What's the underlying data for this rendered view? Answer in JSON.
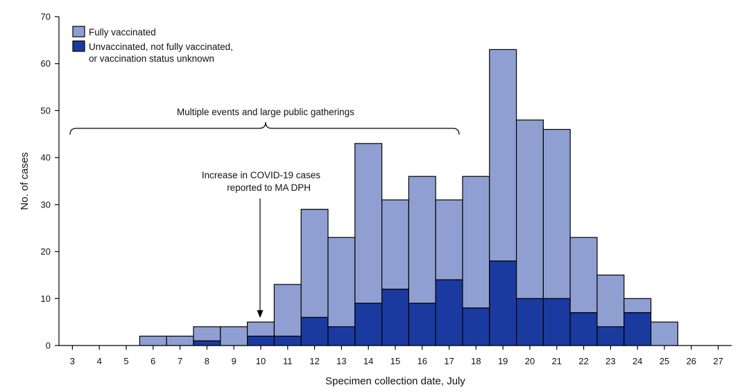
{
  "chart_data": {
    "type": "bar",
    "stacked": true,
    "categories": [
      "3",
      "4",
      "5",
      "6",
      "7",
      "8",
      "9",
      "10",
      "11",
      "12",
      "13",
      "14",
      "15",
      "16",
      "17",
      "18",
      "19",
      "20",
      "21",
      "22",
      "23",
      "24",
      "25",
      "26",
      "27"
    ],
    "series": [
      {
        "name": "Unvaccinated, not fully vaccinated, or vaccination status unknown",
        "legend_lines": [
          "Unvaccinated, not fully vaccinated,",
          "or vaccination status unknown"
        ],
        "color": "#1a3aa0",
        "values": [
          0,
          0,
          0,
          0,
          0,
          1,
          0,
          2,
          2,
          6,
          4,
          9,
          12,
          9,
          14,
          8,
          18,
          10,
          10,
          7,
          4,
          7,
          0,
          0,
          0
        ]
      },
      {
        "name": "Fully vaccinated",
        "legend_lines": [
          "Fully vaccinated"
        ],
        "color": "#8f9fd1",
        "values": [
          0,
          0,
          0,
          2,
          2,
          3,
          4,
          3,
          11,
          23,
          19,
          34,
          19,
          27,
          17,
          28,
          45,
          38,
          36,
          16,
          11,
          3,
          5,
          0,
          0
        ]
      }
    ],
    "xlabel": "Specimen collection date, July",
    "ylabel": "No. of cases",
    "ylim": [
      0,
      70
    ],
    "yticks": [
      0,
      10,
      20,
      30,
      40,
      50,
      60,
      70
    ],
    "legend_position": "top-left",
    "annotations": {
      "bracket_label": "Multiple events and large public gatherings",
      "bracket_start": "3",
      "bracket_end": "17",
      "arrow_label_lines": [
        "Increase in COVID-19 cases",
        "reported to MA DPH"
      ],
      "arrow_target": "10"
    }
  }
}
